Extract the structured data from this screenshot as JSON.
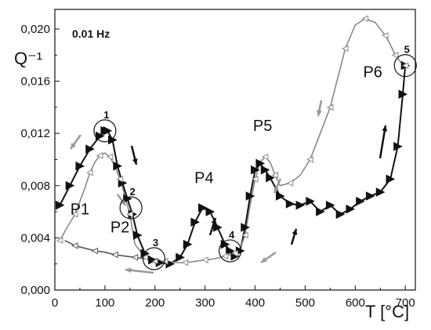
{
  "chart_data": {
    "type": "line",
    "title": "",
    "annotation_frequency": "0.01 Hz",
    "xlabel": "T [°C]",
    "ylabel": "Q⁻¹",
    "xlim": [
      0,
      720
    ],
    "ylim": [
      0,
      0.0215
    ],
    "x_ticks": [
      0,
      100,
      200,
      300,
      400,
      500,
      600,
      700
    ],
    "y_ticks": [
      0.0,
      0.004,
      0.008,
      0.012,
      0.016,
      0.02
    ],
    "y_tick_labels": [
      "0,000",
      "0,004",
      "0,008",
      "0,012",
      "0,016",
      "0,020"
    ],
    "grid": false,
    "legend": "none",
    "series": [
      {
        "role": "heating",
        "color": "#111111",
        "marker": "triangle-right",
        "x": [
          10,
          30,
          50,
          70,
          90,
          100,
          105,
          115,
          125,
          135,
          145,
          155,
          165,
          180,
          195,
          210,
          230,
          250,
          265,
          280,
          295,
          310,
          325,
          340,
          350,
          360,
          370,
          380,
          390,
          400,
          410,
          420,
          430,
          450,
          470,
          490,
          510,
          530,
          550,
          570,
          590,
          610,
          630,
          650,
          670,
          685,
          695,
          700
        ],
        "y": [
          0.0065,
          0.008,
          0.0095,
          0.0108,
          0.0118,
          0.0122,
          0.0122,
          0.0115,
          0.0095,
          0.0082,
          0.007,
          0.0058,
          0.0042,
          0.0028,
          0.0023,
          0.0021,
          0.002,
          0.0025,
          0.0035,
          0.0052,
          0.0063,
          0.006,
          0.0048,
          0.0035,
          0.003,
          0.0026,
          0.003,
          0.0048,
          0.0072,
          0.0092,
          0.0097,
          0.0092,
          0.0086,
          0.0072,
          0.0066,
          0.0065,
          0.0068,
          0.006,
          0.0065,
          0.0058,
          0.0062,
          0.0068,
          0.0072,
          0.0075,
          0.0085,
          0.011,
          0.015,
          0.0172
        ]
      },
      {
        "role": "cooling",
        "color": "#888888",
        "marker": "triangle-left",
        "x": [
          700,
          690,
          680,
          670,
          660,
          640,
          620,
          600,
          580,
          560,
          550,
          530,
          510,
          490,
          470,
          450,
          440,
          430,
          420,
          410,
          400,
          390,
          380,
          370,
          360,
          350,
          340,
          320,
          300,
          280,
          260,
          240,
          220,
          200,
          180,
          160,
          150,
          140,
          130,
          120,
          110,
          100,
          90,
          80,
          70,
          60,
          40,
          20,
          10
        ],
        "y": [
          0.0172,
          0.0175,
          0.018,
          0.0188,
          0.0195,
          0.0205,
          0.0208,
          0.0203,
          0.0185,
          0.0155,
          0.014,
          0.012,
          0.01,
          0.0088,
          0.0082,
          0.008,
          0.0088,
          0.0098,
          0.0102,
          0.0098,
          0.0085,
          0.0065,
          0.0042,
          0.0032,
          0.0028,
          0.0027,
          0.0026,
          0.0024,
          0.0023,
          0.0022,
          0.0021,
          0.0021,
          0.0022,
          0.0022,
          0.0025,
          0.0035,
          0.0058,
          0.0072,
          0.0085,
          0.0095,
          0.0102,
          0.0105,
          0.0103,
          0.0098,
          0.009,
          0.0078,
          0.0058,
          0.0045,
          0.0038
        ]
      },
      {
        "role": "low-temp-cooling-tail",
        "color": "#555555",
        "marker": "triangle-left",
        "x": [
          200,
          180,
          160,
          140,
          120,
          100,
          80,
          60,
          40,
          20
        ],
        "y": [
          0.0022,
          0.0024,
          0.0025,
          0.0026,
          0.0027,
          0.0029,
          0.003,
          0.0032,
          0.0034,
          0.0038
        ]
      }
    ],
    "peak_labels": [
      {
        "text": "P1",
        "x": 50,
        "y": 0.0058
      },
      {
        "text": "P2",
        "x": 130,
        "y": 0.0044
      },
      {
        "text": "P4",
        "x": 298,
        "y": 0.0082
      },
      {
        "text": "P5",
        "x": 415,
        "y": 0.0122
      },
      {
        "text": "P6",
        "x": 635,
        "y": 0.0163
      }
    ],
    "circled_points": [
      {
        "label": "1",
        "x": 100,
        "y": 0.0122
      },
      {
        "label": "2",
        "x": 152,
        "y": 0.0063
      },
      {
        "label": "3",
        "x": 198,
        "y": 0.0024
      },
      {
        "label": "4",
        "x": 350,
        "y": 0.003
      },
      {
        "label": "5",
        "x": 700,
        "y": 0.0172
      }
    ]
  }
}
